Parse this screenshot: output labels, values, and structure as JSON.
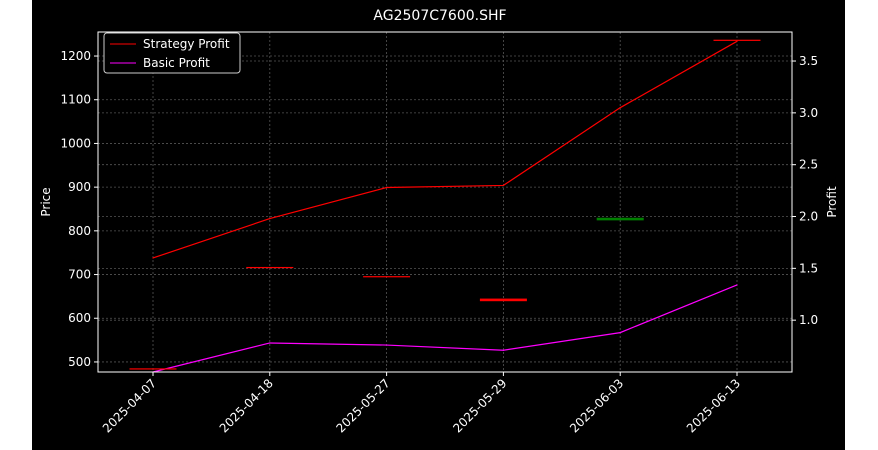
{
  "chart_data": {
    "type": "line",
    "title": "AG2507C7600.SHF",
    "xlabel": "",
    "ylabel": "Price",
    "y2label": "Profit",
    "categories": [
      "2025-04-07",
      "2025-04-18",
      "2025-05-27",
      "2025-05-29",
      "2025-06-03",
      "2025-06-13"
    ],
    "ylim": [
      477,
      1255
    ],
    "y2lim": [
      0.5,
      3.78
    ],
    "yticks": [
      500,
      600,
      700,
      800,
      900,
      1000,
      1100,
      1200
    ],
    "y2ticks": [
      1.0,
      1.5,
      2.0,
      2.5,
      3.0,
      3.5
    ],
    "grid": true,
    "legend_position": "top-left",
    "series": [
      {
        "name": "Strategy Profit",
        "axis": "right",
        "color": "#ff0000",
        "values": [
          1.6,
          1.98,
          2.28,
          2.3,
          3.05,
          3.69
        ]
      },
      {
        "name": "Basic Profit",
        "axis": "right",
        "color": "#ff00ff",
        "values": [
          0.5,
          0.78,
          0.76,
          0.71,
          0.88,
          1.34
        ]
      }
    ],
    "candles": [
      {
        "x": "2025-04-07",
        "open": 484,
        "close": 484,
        "color": "#ff0000"
      },
      {
        "x": "2025-04-18",
        "open": 716,
        "close": 716,
        "color": "#ff0000"
      },
      {
        "x": "2025-05-27",
        "open": 695,
        "close": 695,
        "color": "#ff0000"
      },
      {
        "x": "2025-05-29",
        "open": 645,
        "close": 639,
        "color": "#ff0000"
      },
      {
        "x": "2025-06-03",
        "open": 824,
        "close": 830,
        "color": "#008000"
      },
      {
        "x": "2025-06-13",
        "open": 1236,
        "close": 1236,
        "color": "#ff0000"
      }
    ]
  }
}
